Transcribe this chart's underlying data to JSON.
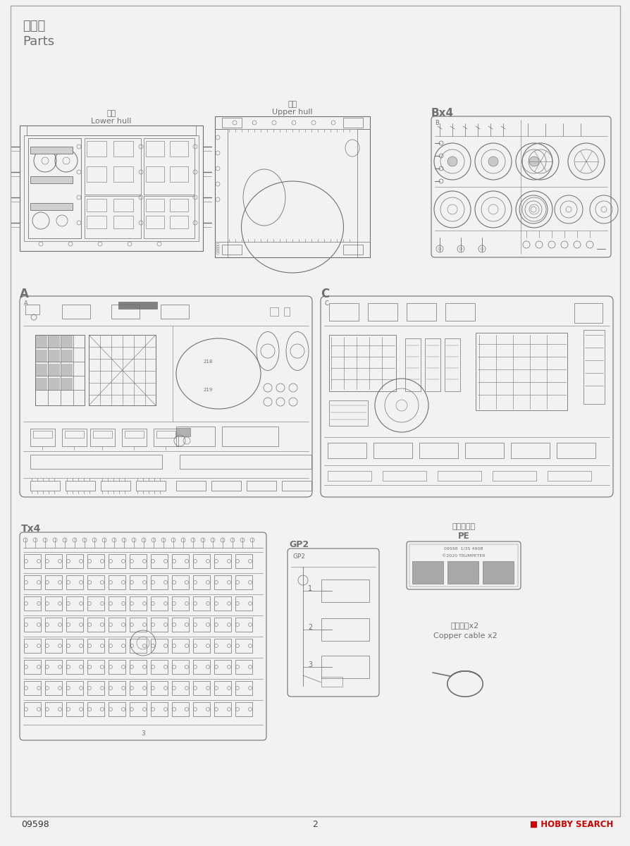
{
  "bg_color": "#f2f2f2",
  "line_color": "#707070",
  "dark_line": "#404040",
  "title_cn": "部品図",
  "title_en": "Parts",
  "lower_hull_cn": "车底",
  "lower_hull_en": "Lower hull",
  "upper_hull_cn": "车面",
  "upper_hull_en": "Upper hull",
  "bx4": "Bx4",
  "a_label": "A",
  "c_label": "C",
  "tx4": "Tx4",
  "gp2": "GP2",
  "pe_cn": "《蚀刻片》",
  "pe_en": "PE",
  "pe_info1": "09598  1/35 490B",
  "pe_info2": "©2020 TRUMPETER",
  "copper_cn": "《铜缆》x2",
  "copper_en": "Copper cable x2",
  "code": "09598",
  "page": "2",
  "hobby": "HOBBY SEARCH"
}
